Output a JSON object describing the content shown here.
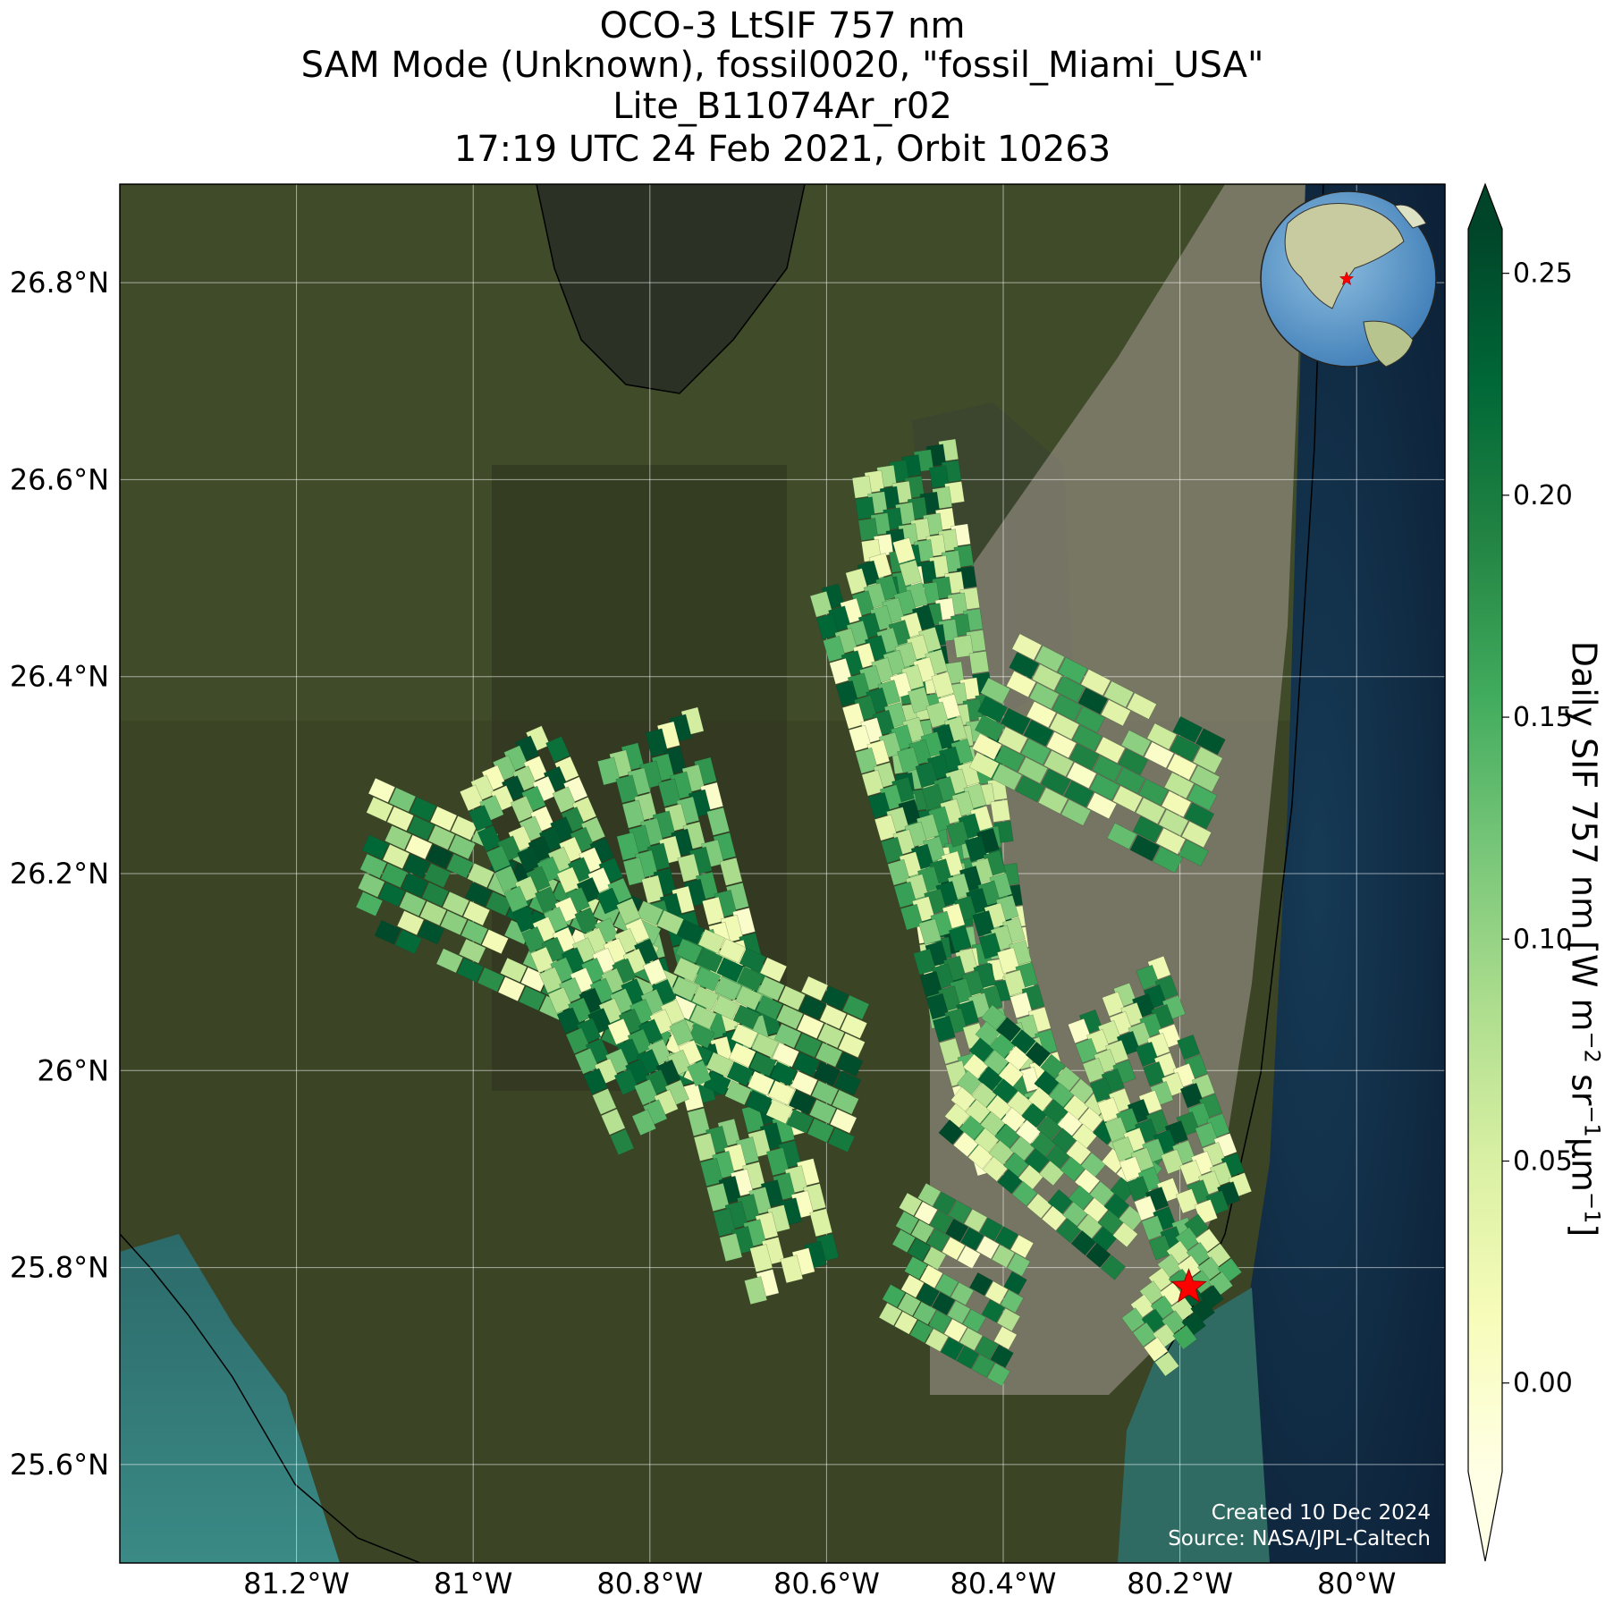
{
  "title_lines": [
    "OCO-3 LtSIF 757 nm",
    "SAM Mode (Unknown), fossil0020, \"fossil_Miami_USA\"",
    "Lite_B11074Ar_r02",
    "17:19 UTC 24 Feb 2021, Orbit 10263"
  ],
  "map": {
    "lon_range": [
      -81.4,
      -79.9
    ],
    "lat_range": [
      25.5,
      26.9
    ],
    "lon_ticks": [
      {
        "value": -81.2,
        "label": "81.2°W"
      },
      {
        "value": -81.0,
        "label": "81°W"
      },
      {
        "value": -80.8,
        "label": "80.8°W"
      },
      {
        "value": -80.6,
        "label": "80.6°W"
      },
      {
        "value": -80.4,
        "label": "80.4°W"
      },
      {
        "value": -80.2,
        "label": "80.2°W"
      },
      {
        "value": -80.0,
        "label": "80°W"
      }
    ],
    "lat_ticks": [
      {
        "value": 26.8,
        "label": "26.8°N"
      },
      {
        "value": 26.6,
        "label": "26.6°N"
      },
      {
        "value": 26.4,
        "label": "26.4°N"
      },
      {
        "value": 26.2,
        "label": "26.2°N"
      },
      {
        "value": 26.0,
        "label": "26°N"
      },
      {
        "value": 25.8,
        "label": "25.8°N"
      },
      {
        "value": 25.6,
        "label": "25.6°N"
      }
    ],
    "gridlines": true,
    "target": {
      "name": "fossil_Miami_USA",
      "lon": -80.19,
      "lat": 25.78,
      "marker": "red-star"
    },
    "footprint_swaths": [
      {
        "lon0": -80.51,
        "lat0": 26.62,
        "lon1": -80.42,
        "lat1": 26.06,
        "rows": 26
      },
      {
        "lon0": -80.56,
        "lat0": 26.51,
        "lon1": -80.37,
        "lat1": 25.92,
        "rows": 26
      },
      {
        "lon0": -80.42,
        "lat0": 26.38,
        "lon1": -80.16,
        "lat1": 26.26,
        "rows": 10
      },
      {
        "lon0": -80.8,
        "lat0": 26.34,
        "lon1": -80.64,
        "lat1": 25.78,
        "rows": 22
      },
      {
        "lon0": -81.12,
        "lat0": 26.22,
        "lon1": -80.56,
        "lat1": 25.99,
        "rows": 24
      },
      {
        "lon0": -80.96,
        "lat0": 26.32,
        "lon1": -80.78,
        "lat1": 25.95,
        "rows": 18
      },
      {
        "lon0": -80.44,
        "lat0": 26.0,
        "lon1": -80.24,
        "lat1": 25.85,
        "rows": 12
      },
      {
        "lon0": -80.52,
        "lat0": 25.82,
        "lon1": -80.38,
        "lat1": 25.75,
        "rows": 8
      },
      {
        "lon0": -80.27,
        "lat0": 26.08,
        "lon1": -80.17,
        "lat1": 25.84,
        "rows": 12
      },
      {
        "lon0": -80.22,
        "lat0": 25.8,
        "lon1": -80.17,
        "lat1": 25.74,
        "rows": 4
      }
    ],
    "inset_globe": {
      "center_lon": -80,
      "center_lat": 26,
      "marker": "red-star"
    },
    "credit_lines": [
      "Created 10 Dec 2024",
      "Source: NASA/JPL-Caltech"
    ]
  },
  "colorbar": {
    "label_main": "Daily SIF 757 nm [W m",
    "label_parts": [
      "Daily SIF 757 nm [W m",
      "−2",
      " sr",
      "−1",
      "μm",
      "−1",
      "]"
    ],
    "range": [
      -0.02,
      0.26
    ],
    "ticks": [
      {
        "value": 0.0,
        "label": "0.00"
      },
      {
        "value": 0.05,
        "label": "0.05"
      },
      {
        "value": 0.1,
        "label": "0.10"
      },
      {
        "value": 0.15,
        "label": "0.15"
      },
      {
        "value": 0.2,
        "label": "0.20"
      },
      {
        "value": 0.25,
        "label": "0.25"
      }
    ],
    "colormap": "YlGn",
    "colors": [
      "#ffffe5",
      "#f7fcb9",
      "#d9f0a3",
      "#addd8e",
      "#78c679",
      "#41ab5d",
      "#238443",
      "#006837",
      "#004529"
    ],
    "extend": "both"
  }
}
